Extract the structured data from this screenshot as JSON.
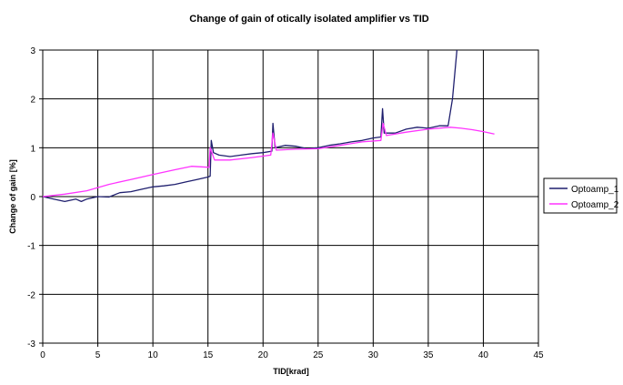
{
  "chart_data": {
    "type": "line",
    "title": "Change of gain of otically isolated amplifier vs TID",
    "xlabel": "TID[krad]",
    "ylabel": "Change of gain [%]",
    "xlim": [
      0,
      45
    ],
    "ylim": [
      -3,
      3
    ],
    "x_ticks": [
      "0",
      "5",
      "10",
      "15",
      "20",
      "25",
      "30",
      "35",
      "40",
      "45"
    ],
    "y_ticks": [
      "-3",
      "-2",
      "-1",
      "0",
      "1",
      "2",
      "3"
    ],
    "grid": true,
    "legend_position": "right",
    "series": [
      {
        "name": "Optoamp_1",
        "color": "#1f1f6e",
        "points": [
          [
            0,
            0
          ],
          [
            1,
            -0.05
          ],
          [
            2,
            -0.1
          ],
          [
            3,
            -0.05
          ],
          [
            3.5,
            -0.1
          ],
          [
            4,
            -0.05
          ],
          [
            5,
            0.0
          ],
          [
            6,
            -0.01
          ],
          [
            7,
            0.08
          ],
          [
            8,
            0.1
          ],
          [
            9,
            0.15
          ],
          [
            10,
            0.2
          ],
          [
            11,
            0.22
          ],
          [
            12,
            0.25
          ],
          [
            13,
            0.3
          ],
          [
            14,
            0.35
          ],
          [
            15,
            0.4
          ],
          [
            15.2,
            0.42
          ],
          [
            15.3,
            1.15
          ],
          [
            15.5,
            0.9
          ],
          [
            16,
            0.85
          ],
          [
            17,
            0.82
          ],
          [
            18,
            0.85
          ],
          [
            19,
            0.88
          ],
          [
            20,
            0.9
          ],
          [
            20.8,
            0.93
          ],
          [
            20.9,
            1.5
          ],
          [
            21.1,
            1.0
          ],
          [
            22,
            1.05
          ],
          [
            23,
            1.03
          ],
          [
            24,
            0.98
          ],
          [
            25,
            1.0
          ],
          [
            26,
            1.05
          ],
          [
            27,
            1.08
          ],
          [
            28,
            1.12
          ],
          [
            29,
            1.15
          ],
          [
            30,
            1.2
          ],
          [
            30.7,
            1.22
          ],
          [
            30.85,
            1.8
          ],
          [
            31,
            1.3
          ],
          [
            32,
            1.3
          ],
          [
            33,
            1.38
          ],
          [
            34,
            1.42
          ],
          [
            35,
            1.4
          ],
          [
            36,
            1.45
          ],
          [
            36.8,
            1.45
          ],
          [
            37.2,
            2.0
          ],
          [
            37.6,
            3.0
          ]
        ]
      },
      {
        "name": "Optoamp_2",
        "color": "#ff33ff",
        "points": [
          [
            0,
            0
          ],
          [
            2,
            0.05
          ],
          [
            4,
            0.12
          ],
          [
            6,
            0.25
          ],
          [
            8,
            0.35
          ],
          [
            10,
            0.45
          ],
          [
            12,
            0.55
          ],
          [
            13.5,
            0.62
          ],
          [
            15.1,
            0.6
          ],
          [
            15.2,
            1.0
          ],
          [
            15.6,
            0.75
          ],
          [
            17,
            0.75
          ],
          [
            19,
            0.8
          ],
          [
            20.7,
            0.85
          ],
          [
            20.9,
            1.3
          ],
          [
            21.2,
            0.95
          ],
          [
            23,
            0.97
          ],
          [
            25,
            0.98
          ],
          [
            27,
            1.05
          ],
          [
            29,
            1.12
          ],
          [
            30.7,
            1.15
          ],
          [
            30.9,
            1.5
          ],
          [
            31.2,
            1.25
          ],
          [
            33,
            1.32
          ],
          [
            35,
            1.38
          ],
          [
            37,
            1.42
          ],
          [
            38,
            1.4
          ],
          [
            39,
            1.37
          ],
          [
            40,
            1.33
          ],
          [
            41,
            1.28
          ]
        ]
      }
    ]
  }
}
